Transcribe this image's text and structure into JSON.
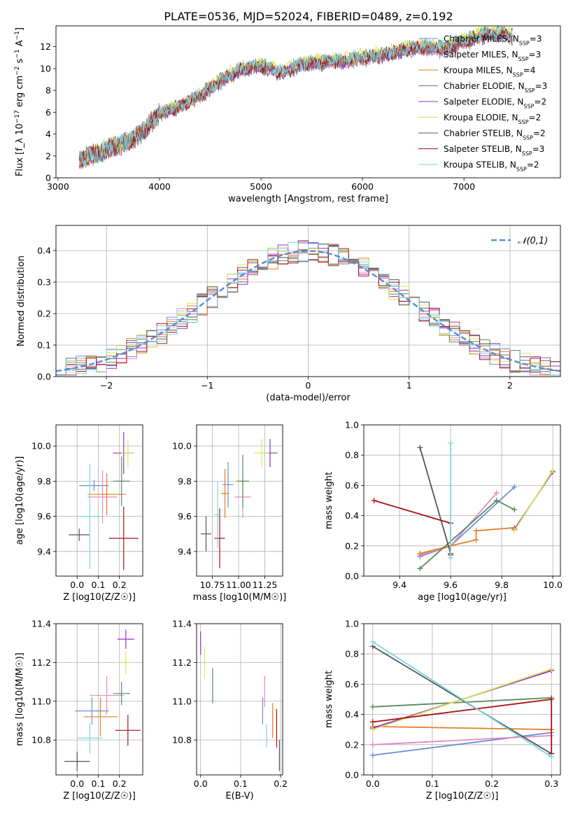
{
  "figure_title": "PLATE=0536, MJD=52024, FIBERID=0489, z=0.192",
  "models": [
    {
      "key": "chabrier_miles",
      "name": "Chabrier MILES",
      "nssp": 3,
      "color": "#6b8fd9"
    },
    {
      "key": "salpeter_miles",
      "name": "Salpeter MILES",
      "nssp": 3,
      "color": "#e58ac0"
    },
    {
      "key": "kroupa_miles",
      "name": "Kroupa MILES",
      "nssp": 4,
      "color": "#e67e22"
    },
    {
      "key": "chabrier_elodie",
      "name": "Chabrier ELODIE",
      "nssp": 3,
      "color": "#5c8a5c"
    },
    {
      "key": "salpeter_elodie",
      "name": "Salpeter ELODIE",
      "nssp": 2,
      "color": "#9b30c0"
    },
    {
      "key": "kroupa_elodie",
      "name": "Kroupa ELODIE",
      "nssp": 2,
      "color": "#d8e854"
    },
    {
      "key": "chabrier_stelib",
      "name": "Chabrier STELIB",
      "nssp": 2,
      "color": "#555555"
    },
    {
      "key": "salpeter_stelib",
      "name": "Salpeter STELIB",
      "nssp": 3,
      "color": "#aa1111"
    },
    {
      "key": "kroupa_stelib",
      "name": "Kroupa STELIB",
      "nssp": 2,
      "color": "#7dd6e0"
    }
  ],
  "chart_data": [
    {
      "id": "spectrum",
      "type": "line",
      "xlabel": "wavelength [Angstrom, rest frame]",
      "ylabel": "Flux [f_λ 10^-17 erg cm^-2 s^-1 A^-1]",
      "xlim": [
        2980,
        7950
      ],
      "ylim": [
        0,
        13.9
      ],
      "xticks": [
        3000,
        4000,
        5000,
        6000,
        7000
      ],
      "yticks": [
        0,
        2,
        4,
        6,
        8,
        10,
        12
      ],
      "grid": false,
      "legend_position": "lower-right",
      "observed_envelope": {
        "x": [
          3210,
          3400,
          3600,
          3800,
          4000,
          4200,
          4400,
          4600,
          4800,
          5000,
          5200,
          5400,
          5600,
          5800,
          6000,
          6200,
          6400,
          6600,
          6800,
          7000,
          7200,
          7400,
          7480
        ],
        "y": [
          1.7,
          2.3,
          3.0,
          3.9,
          5.9,
          6.5,
          7.5,
          8.9,
          9.9,
          10.3,
          9.6,
          10.4,
          10.6,
          10.7,
          11.0,
          11.2,
          11.7,
          12.0,
          11.8,
          12.5,
          13.1,
          13.2,
          12.9
        ]
      },
      "model_scale": [
        1.0,
        0.99,
        1.0,
        1.01,
        0.99,
        1.02,
        0.98,
        1.0,
        1.01
      ]
    },
    {
      "id": "residuals",
      "type": "histogram",
      "xlabel": "(data-model)/error",
      "ylabel": "Normed distribution",
      "xlim": [
        -2.5,
        2.5
      ],
      "ylim": [
        0,
        0.48
      ],
      "xticks": [
        -2,
        -1,
        0,
        1,
        2
      ],
      "yticks": [
        0.0,
        0.1,
        0.2,
        0.3,
        0.4
      ],
      "grid": true,
      "legend_position": "top-right",
      "reference_curve": {
        "name": "𝒩(0,1)",
        "mean": 0,
        "sigma": 1
      }
    },
    {
      "id": "age_vs_Z",
      "type": "scatter",
      "xlabel": "Z [log10(Z/Z☉)]",
      "ylabel": "age [log10(age/yr)]",
      "xlim": [
        -0.1,
        0.31
      ],
      "ylim": [
        9.26,
        10.12
      ],
      "xticks": [
        0.0,
        0.1,
        0.2
      ],
      "yticks": [
        9.4,
        9.6,
        9.8,
        10.0
      ],
      "grid": true,
      "points": [
        {
          "model": "chabrier_miles",
          "x": 0.08,
          "y": 9.775,
          "xerr": 0.07,
          "yerr": 0.03
        },
        {
          "model": "salpeter_miles",
          "x": 0.12,
          "y": 9.71,
          "xerr": 0.07,
          "yerr": 0.15
        },
        {
          "model": "kroupa_miles",
          "x": 0.14,
          "y": 9.725,
          "xerr": 0.09,
          "yerr": 0.12
        },
        {
          "model": "chabrier_elodie",
          "x": 0.21,
          "y": 9.8,
          "xerr": 0.04,
          "yerr": 0.14
        },
        {
          "model": "salpeter_elodie",
          "x": 0.22,
          "y": 9.96,
          "xerr": 0.05,
          "yerr": 0.12
        },
        {
          "model": "kroupa_elodie",
          "x": 0.24,
          "y": 9.96,
          "xerr": 0.03,
          "yerr": 0.08
        },
        {
          "model": "chabrier_stelib",
          "x": 0.01,
          "y": 9.495,
          "xerr": 0.05,
          "yerr": 0.035
        },
        {
          "model": "salpeter_stelib",
          "x": 0.22,
          "y": 9.475,
          "xerr": 0.07,
          "yerr": 0.18
        },
        {
          "model": "kroupa_stelib",
          "x": 0.06,
          "y": 9.6,
          "xerr": 0.05,
          "yerr": 0.3
        }
      ]
    },
    {
      "id": "age_vs_mass",
      "type": "scatter",
      "xlabel": "mass [log10(M/M☉)]",
      "ylabel": "",
      "xlim": [
        10.6,
        11.42
      ],
      "ylim": [
        9.26,
        10.12
      ],
      "xticks": [
        10.75,
        11.0,
        11.25
      ],
      "xtick_labels": [
        "10.75",
        "11.00",
        "11.25"
      ],
      "yticks": [
        9.4,
        9.6,
        9.8,
        10.0
      ],
      "grid": true,
      "points": [
        {
          "model": "chabrier_miles",
          "x": 10.9,
          "y": 9.78,
          "xerr": 0.05,
          "yerr": 0.13
        },
        {
          "model": "salpeter_miles",
          "x": 11.04,
          "y": 9.71,
          "xerr": 0.08,
          "yerr": 0.12
        },
        {
          "model": "kroupa_miles",
          "x": 10.87,
          "y": 9.73,
          "xerr": 0.04,
          "yerr": 0.14
        },
        {
          "model": "chabrier_elodie",
          "x": 11.04,
          "y": 9.8,
          "xerr": 0.06,
          "yerr": 0.15
        },
        {
          "model": "salpeter_elodie",
          "x": 11.3,
          "y": 9.96,
          "xerr": 0.07,
          "yerr": 0.08
        },
        {
          "model": "kroupa_elodie",
          "x": 11.22,
          "y": 9.96,
          "xerr": 0.07,
          "yerr": 0.08
        },
        {
          "model": "chabrier_stelib",
          "x": 10.69,
          "y": 9.5,
          "xerr": 0.05,
          "yerr": 0.1
        },
        {
          "model": "salpeter_stelib",
          "x": 10.82,
          "y": 9.475,
          "xerr": 0.05,
          "yerr": 0.17
        },
        {
          "model": "kroupa_stelib",
          "x": 10.8,
          "y": 9.61,
          "xerr": 0.03,
          "yerr": 0.19
        }
      ]
    },
    {
      "id": "weight_vs_age",
      "type": "line",
      "xlabel": "age [log10(age/yr)]",
      "ylabel": "mass weight",
      "xlim": [
        9.26,
        10.03
      ],
      "ylim": [
        0,
        1.0
      ],
      "xticks": [
        9.4,
        9.6,
        9.8,
        10.0
      ],
      "yticks": [
        0.0,
        0.2,
        0.4,
        0.6,
        0.8,
        1.0
      ],
      "grid": true,
      "series": [
        {
          "model": "chabrier_miles",
          "x": [
            9.48,
            9.6,
            9.85
          ],
          "y": [
            0.13,
            0.2,
            0.59
          ]
        },
        {
          "model": "salpeter_miles",
          "x": [
            9.48,
            9.6,
            9.78
          ],
          "y": [
            0.14,
            0.2,
            0.55
          ]
        },
        {
          "model": "kroupa_miles",
          "x": [
            9.48,
            9.6,
            9.7,
            9.7,
            9.85
          ],
          "y": [
            0.15,
            0.2,
            0.24,
            0.3,
            0.32
          ]
        },
        {
          "model": "chabrier_elodie",
          "x": [
            9.48,
            9.78,
            9.85
          ],
          "y": [
            0.05,
            0.5,
            0.44
          ]
        },
        {
          "model": "salpeter_elodie",
          "x": [
            9.85,
            10.0
          ],
          "y": [
            0.31,
            0.69
          ]
        },
        {
          "model": "kroupa_elodie",
          "x": [
            9.85,
            10.0
          ],
          "y": [
            0.3,
            0.7
          ]
        },
        {
          "model": "chabrier_stelib",
          "x": [
            9.48,
            9.6
          ],
          "y": [
            0.85,
            0.15
          ]
        },
        {
          "model": "salpeter_stelib",
          "x": [
            9.3,
            9.6,
            9.6
          ],
          "y": [
            0.5,
            0.35,
            0.14
          ]
        },
        {
          "model": "kroupa_stelib",
          "x": [
            9.6,
            9.6
          ],
          "y": [
            0.88,
            0.12
          ]
        }
      ]
    },
    {
      "id": "mass_vs_Z",
      "type": "scatter",
      "xlabel": "Z [log10(Z/Z☉)]",
      "ylabel": "mass [log10(M/M☉)]",
      "xlim": [
        -0.1,
        0.31
      ],
      "ylim": [
        10.62,
        11.4
      ],
      "xticks": [
        0.0,
        0.1,
        0.2
      ],
      "yticks": [
        10.8,
        11.0,
        11.2,
        11.4
      ],
      "grid": true,
      "points": [
        {
          "model": "chabrier_miles",
          "x": 0.07,
          "y": 10.95,
          "xerr": 0.08,
          "yerr": 0.07
        },
        {
          "model": "salpeter_miles",
          "x": 0.14,
          "y": 11.03,
          "xerr": 0.08,
          "yerr": 0.1
        },
        {
          "model": "kroupa_miles",
          "x": 0.11,
          "y": 10.92,
          "xerr": 0.08,
          "yerr": 0.1
        },
        {
          "model": "chabrier_elodie",
          "x": 0.21,
          "y": 11.04,
          "xerr": 0.04,
          "yerr": 0.06
        },
        {
          "model": "salpeter_elodie",
          "x": 0.23,
          "y": 11.32,
          "xerr": 0.04,
          "yerr": 0.05
        },
        {
          "model": "kroupa_elodie",
          "x": 0.23,
          "y": 11.2,
          "xerr": 0.03,
          "yerr": 0.06
        },
        {
          "model": "chabrier_stelib",
          "x": 0.0,
          "y": 10.69,
          "xerr": 0.06,
          "yerr": 0.05
        },
        {
          "model": "salpeter_stelib",
          "x": 0.24,
          "y": 10.85,
          "xerr": 0.06,
          "yerr": 0.08
        },
        {
          "model": "kroupa_stelib",
          "x": 0.06,
          "y": 10.81,
          "xerr": 0.06,
          "yerr": 0.08
        }
      ]
    },
    {
      "id": "mass_vs_EBV",
      "type": "scatter",
      "xlabel": "E(B-V)",
      "ylabel": "",
      "xlim": [
        -0.01,
        0.205
      ],
      "ylim": [
        10.62,
        11.4
      ],
      "xticks": [
        0.0,
        0.1,
        0.2
      ],
      "yticks": [
        10.8,
        11.0,
        11.2,
        11.4
      ],
      "grid": true,
      "points": [
        {
          "model": "chabrier_miles",
          "x": 0.155,
          "y": 10.95,
          "xerr": 0,
          "yerr": 0.07
        },
        {
          "model": "salpeter_miles",
          "x": 0.16,
          "y": 11.05,
          "xerr": 0,
          "yerr": 0.08
        },
        {
          "model": "kroupa_miles",
          "x": 0.18,
          "y": 10.9,
          "xerr": 0,
          "yerr": 0.09
        },
        {
          "model": "chabrier_elodie",
          "x": 0.03,
          "y": 11.08,
          "xerr": 0,
          "yerr": 0.09
        },
        {
          "model": "salpeter_elodie",
          "x": 0.0,
          "y": 11.3,
          "xerr": 0,
          "yerr": 0.06
        },
        {
          "model": "kroupa_elodie",
          "x": 0.01,
          "y": 11.2,
          "xerr": 0,
          "yerr": 0.08
        },
        {
          "model": "chabrier_stelib",
          "x": 0.197,
          "y": 10.72,
          "xerr": 0,
          "yerr": 0.08
        },
        {
          "model": "salpeter_stelib",
          "x": 0.19,
          "y": 10.86,
          "xerr": 0,
          "yerr": 0.1
        },
        {
          "model": "kroupa_stelib",
          "x": 0.165,
          "y": 10.82,
          "xerr": 0,
          "yerr": 0.06
        }
      ]
    },
    {
      "id": "weight_vs_Z",
      "type": "line",
      "xlabel": "Z [log10(Z/Z☉)]",
      "ylabel": "mass weight",
      "xlim": [
        -0.015,
        0.315
      ],
      "ylim": [
        0,
        1.0
      ],
      "xticks": [
        0.0,
        0.1,
        0.2,
        0.3
      ],
      "yticks": [
        0.0,
        0.2,
        0.4,
        0.6,
        0.8,
        1.0
      ],
      "grid": true,
      "series": [
        {
          "model": "chabrier_miles",
          "x": [
            0.0,
            0.3
          ],
          "y": [
            0.13,
            0.28
          ]
        },
        {
          "model": "salpeter_miles",
          "x": [
            0.0,
            0.3
          ],
          "y": [
            0.2,
            0.26
          ]
        },
        {
          "model": "kroupa_miles",
          "x": [
            0.0,
            0.3
          ],
          "y": [
            0.32,
            0.3
          ]
        },
        {
          "model": "chabrier_elodie",
          "x": [
            0.0,
            0.3
          ],
          "y": [
            0.45,
            0.51
          ]
        },
        {
          "model": "salpeter_elodie",
          "x": [
            0.0,
            0.3
          ],
          "y": [
            0.31,
            0.69
          ]
        },
        {
          "model": "kroupa_elodie",
          "x": [
            0.0,
            0.3
          ],
          "y": [
            0.3,
            0.7
          ]
        },
        {
          "model": "chabrier_stelib",
          "x": [
            0.0,
            0.3
          ],
          "y": [
            0.85,
            0.14
          ]
        },
        {
          "model": "salpeter_stelib",
          "x": [
            0.0,
            0.3,
            0.3
          ],
          "y": [
            0.35,
            0.5,
            0.14
          ]
        },
        {
          "model": "kroupa_stelib",
          "x": [
            0.0,
            0.3
          ],
          "y": [
            0.88,
            0.12
          ]
        }
      ]
    }
  ]
}
